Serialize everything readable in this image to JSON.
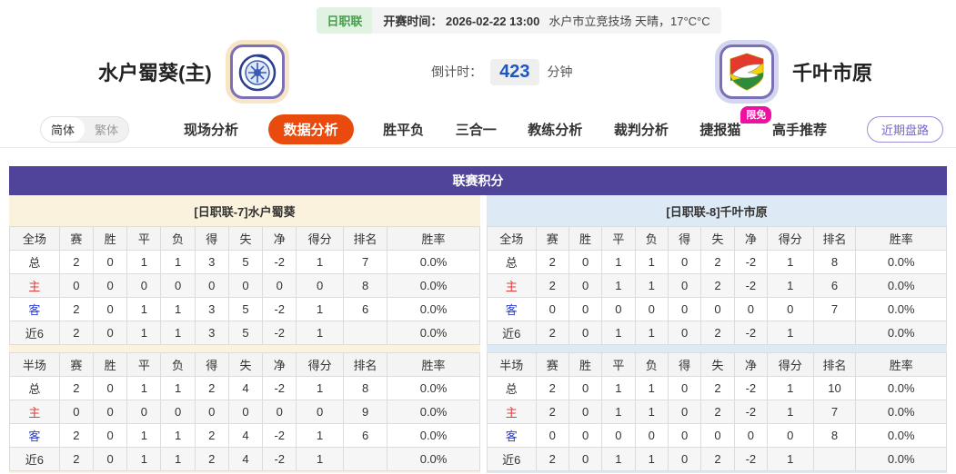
{
  "topbar": {
    "league": "日职联",
    "kickoff": "开赛时间： 2026-02-22 13:00",
    "venue_weather": "水户市立竞技场 天晴，17°C°C"
  },
  "header": {
    "home_name": "水户蜀葵(主)",
    "away_name": "千叶市原",
    "countdown_label": "倒计时：",
    "countdown_value": "423",
    "countdown_unit": "分钟",
    "home_logo": "mito-hollyhock-crest",
    "away_logo": "jef-united-chiba-crest"
  },
  "nav": {
    "lang_simplified": "简体",
    "lang_traditional": "繁体",
    "tabs": {
      "live": "现场分析",
      "data": "数据分析",
      "wdl": "胜平负",
      "three_in_one": "三合一",
      "coach": "教练分析",
      "referee": "裁判分析",
      "jiebaocat": "捷报猫",
      "expert": "高手推荐"
    },
    "limit_badge": "限免",
    "recent_button": "近期盘路"
  },
  "section": {
    "title": "联赛积分",
    "left": {
      "subtitle": "[日职联-7]水户蜀葵",
      "full": {
        "columns": [
          "全场",
          "赛",
          "胜",
          "平",
          "负",
          "得",
          "失",
          "净",
          "得分",
          "排名",
          "胜率"
        ],
        "rows": [
          {
            "label": "总",
            "values": [
              "2",
              "0",
              "1",
              "1",
              "3",
              "5",
              "-2",
              "1",
              "7",
              "0.0%"
            ]
          },
          {
            "label": "主",
            "values": [
              "0",
              "0",
              "0",
              "0",
              "0",
              "0",
              "0",
              "0",
              "8",
              "0.0%"
            ]
          },
          {
            "label": "客",
            "values": [
              "2",
              "0",
              "1",
              "1",
              "3",
              "5",
              "-2",
              "1",
              "6",
              "0.0%"
            ]
          },
          {
            "label": "近6",
            "values": [
              "2",
              "0",
              "1",
              "1",
              "3",
              "5",
              "-2",
              "1",
              "",
              "0.0%"
            ]
          }
        ]
      },
      "half": {
        "columns": [
          "半场",
          "赛",
          "胜",
          "平",
          "负",
          "得",
          "失",
          "净",
          "得分",
          "排名",
          "胜率"
        ],
        "rows": [
          {
            "label": "总",
            "values": [
              "2",
              "0",
              "1",
              "1",
              "2",
              "4",
              "-2",
              "1",
              "8",
              "0.0%"
            ]
          },
          {
            "label": "主",
            "values": [
              "0",
              "0",
              "0",
              "0",
              "0",
              "0",
              "0",
              "0",
              "9",
              "0.0%"
            ]
          },
          {
            "label": "客",
            "values": [
              "2",
              "0",
              "1",
              "1",
              "2",
              "4",
              "-2",
              "1",
              "6",
              "0.0%"
            ]
          },
          {
            "label": "近6",
            "values": [
              "2",
              "0",
              "1",
              "1",
              "2",
              "4",
              "-2",
              "1",
              "",
              "0.0%"
            ]
          }
        ]
      }
    },
    "right": {
      "subtitle": "[日职联-8]千叶市原",
      "full": {
        "columns": [
          "全场",
          "赛",
          "胜",
          "平",
          "负",
          "得",
          "失",
          "净",
          "得分",
          "排名",
          "胜率"
        ],
        "rows": [
          {
            "label": "总",
            "values": [
              "2",
              "0",
              "1",
              "1",
              "0",
              "2",
              "-2",
              "1",
              "8",
              "0.0%"
            ]
          },
          {
            "label": "主",
            "values": [
              "2",
              "0",
              "1",
              "1",
              "0",
              "2",
              "-2",
              "1",
              "6",
              "0.0%"
            ]
          },
          {
            "label": "客",
            "values": [
              "0",
              "0",
              "0",
              "0",
              "0",
              "0",
              "0",
              "0",
              "7",
              "0.0%"
            ]
          },
          {
            "label": "近6",
            "values": [
              "2",
              "0",
              "1",
              "1",
              "0",
              "2",
              "-2",
              "1",
              "",
              "0.0%"
            ]
          }
        ]
      },
      "half": {
        "columns": [
          "半场",
          "赛",
          "胜",
          "平",
          "负",
          "得",
          "失",
          "净",
          "得分",
          "排名",
          "胜率"
        ],
        "rows": [
          {
            "label": "总",
            "values": [
              "2",
              "0",
              "1",
              "1",
              "0",
              "2",
              "-2",
              "1",
              "10",
              "0.0%"
            ]
          },
          {
            "label": "主",
            "values": [
              "2",
              "0",
              "1",
              "1",
              "0",
              "2",
              "-2",
              "1",
              "7",
              "0.0%"
            ]
          },
          {
            "label": "客",
            "values": [
              "0",
              "0",
              "0",
              "0",
              "0",
              "0",
              "0",
              "0",
              "8",
              "0.0%"
            ]
          },
          {
            "label": "近6",
            "values": [
              "2",
              "0",
              "1",
              "1",
              "0",
              "2",
              "-2",
              "1",
              "",
              "0.0%"
            ]
          }
        ]
      }
    }
  },
  "colors": {
    "accent_purple": "#4f4499",
    "active_tab_orange": "#e94b0e",
    "badge_pink": "#ee10a0",
    "countdown_blue": "#1a56c4",
    "league_green": "#43a047",
    "left_panel_cream": "#fbf2dd",
    "right_panel_blue": "#dde9f4",
    "home_label_red": "#e03b3b",
    "away_label_blue": "#2b3fd0"
  }
}
